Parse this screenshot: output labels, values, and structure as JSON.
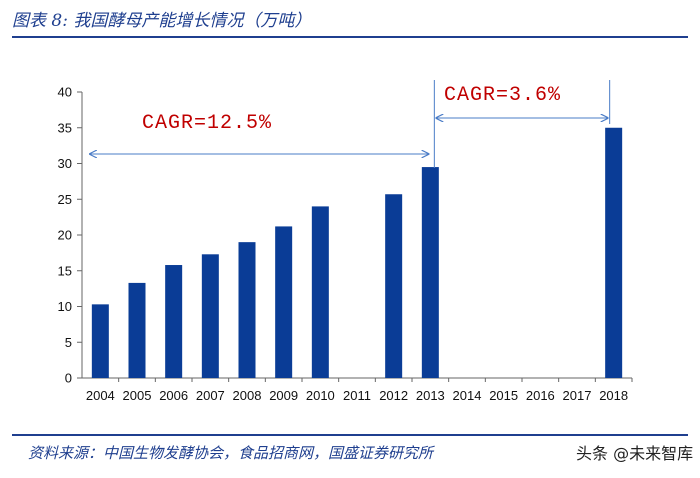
{
  "header": {
    "title": "图表 8:  我国酵母产能增长情况（万吨）"
  },
  "footer": {
    "source": "资料来源：中国生物发酵协会，食品招商网，国盛证券研究所",
    "watermark": "头条 @未来智库"
  },
  "chart_data": {
    "type": "bar",
    "categories": [
      "2004",
      "2005",
      "2006",
      "2007",
      "2008",
      "2009",
      "2010",
      "2011",
      "2012",
      "2013",
      "2014",
      "2015",
      "2016",
      "2017",
      "2018"
    ],
    "values": [
      10.3,
      13.3,
      15.8,
      17.3,
      19.0,
      21.2,
      24.0,
      null,
      25.7,
      29.5,
      null,
      null,
      null,
      null,
      35.0
    ],
    "ylim": [
      0,
      40
    ],
    "yticks": [
      0,
      5,
      10,
      15,
      20,
      25,
      30,
      35,
      40
    ],
    "bar_color": "#0a3c96",
    "annotation_color": "#c00000",
    "arrow_color": "#4a7cc7",
    "annotations": [
      {
        "label": "CAGR=12.5%",
        "from": "2004",
        "to": "2013"
      },
      {
        "label": "CAGR=3.6%",
        "from": "2013",
        "to": "2018"
      }
    ]
  }
}
